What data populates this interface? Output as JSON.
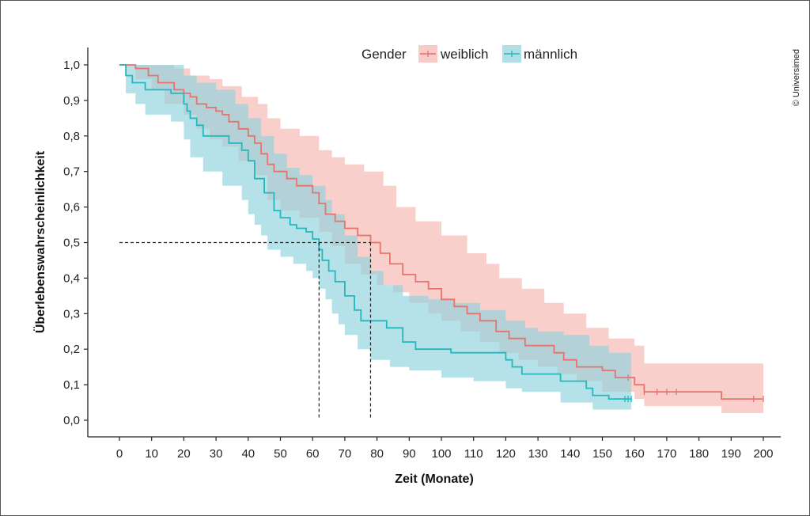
{
  "copyright": "© Universimed",
  "chart_data": {
    "type": "line",
    "subtype": "kaplan-meier survival curve with confidence bands",
    "xlabel": "Zeit (Monate)",
    "ylabel": "Überlebenswahrscheinlichkeit",
    "xlim": [
      -8,
      205
    ],
    "ylim": [
      0,
      1.0
    ],
    "x_ticks": [
      0,
      10,
      20,
      30,
      40,
      50,
      60,
      70,
      80,
      90,
      100,
      110,
      120,
      130,
      140,
      150,
      160,
      170,
      180,
      190,
      200
    ],
    "x_tick_labels": [
      "0",
      "10",
      "20",
      "30",
      "40",
      "50",
      "60",
      "70",
      "80",
      "90",
      "100",
      "110",
      "120",
      "130",
      "140",
      "150",
      "160",
      "170",
      "180",
      "190",
      "200"
    ],
    "y_ticks": [
      0,
      0.1,
      0.2,
      0.3,
      0.4,
      0.5,
      0.6,
      0.7,
      0.8,
      0.9,
      1.0
    ],
    "y_tick_labels": [
      "0,0",
      "0,1",
      "0,2",
      "0,3",
      "0,4",
      "0,5",
      "0,6",
      "0,7",
      "0,8",
      "0,9",
      "1,0"
    ],
    "legend": {
      "title": "Gender",
      "placement": "top-center"
    },
    "median_line": {
      "y": 0.5,
      "x_values": [
        62,
        78
      ]
    },
    "series": [
      {
        "name": "weiblich",
        "color": "#e8736c",
        "band_color": "#f4a7a3",
        "steps": [
          [
            0,
            1.0
          ],
          [
            5,
            0.99
          ],
          [
            9,
            0.97
          ],
          [
            12,
            0.95
          ],
          [
            17,
            0.93
          ],
          [
            20,
            0.92
          ],
          [
            22,
            0.91
          ],
          [
            24,
            0.89
          ],
          [
            27,
            0.88
          ],
          [
            30,
            0.87
          ],
          [
            32,
            0.86
          ],
          [
            34,
            0.84
          ],
          [
            37,
            0.82
          ],
          [
            40,
            0.8
          ],
          [
            42,
            0.78
          ],
          [
            44,
            0.75
          ],
          [
            46,
            0.72
          ],
          [
            48,
            0.7
          ],
          [
            52,
            0.68
          ],
          [
            55,
            0.66
          ],
          [
            60,
            0.64
          ],
          [
            62,
            0.61
          ],
          [
            64,
            0.58
          ],
          [
            67,
            0.56
          ],
          [
            70,
            0.54
          ],
          [
            74,
            0.52
          ],
          [
            78,
            0.5
          ],
          [
            81,
            0.47
          ],
          [
            84,
            0.44
          ],
          [
            88,
            0.41
          ],
          [
            92,
            0.39
          ],
          [
            96,
            0.37
          ],
          [
            100,
            0.34
          ],
          [
            104,
            0.32
          ],
          [
            108,
            0.3
          ],
          [
            112,
            0.28
          ],
          [
            117,
            0.25
          ],
          [
            121,
            0.23
          ],
          [
            126,
            0.21
          ],
          [
            135,
            0.19
          ],
          [
            138,
            0.17
          ],
          [
            142,
            0.15
          ],
          [
            150,
            0.14
          ],
          [
            154,
            0.12
          ],
          [
            160,
            0.1
          ],
          [
            163,
            0.08
          ],
          [
            187,
            0.06
          ],
          [
            200,
            0.06
          ]
        ],
        "ci_upper": [
          [
            0,
            1.0
          ],
          [
            5,
            1.0
          ],
          [
            10,
            1.0
          ],
          [
            17,
            0.99
          ],
          [
            22,
            0.97
          ],
          [
            28,
            0.96
          ],
          [
            32,
            0.94
          ],
          [
            38,
            0.91
          ],
          [
            43,
            0.89
          ],
          [
            46,
            0.85
          ],
          [
            50,
            0.82
          ],
          [
            56,
            0.8
          ],
          [
            62,
            0.76
          ],
          [
            66,
            0.74
          ],
          [
            70,
            0.72
          ],
          [
            76,
            0.7
          ],
          [
            82,
            0.66
          ],
          [
            86,
            0.6
          ],
          [
            92,
            0.56
          ],
          [
            100,
            0.52
          ],
          [
            108,
            0.47
          ],
          [
            114,
            0.44
          ],
          [
            118,
            0.4
          ],
          [
            125,
            0.37
          ],
          [
            132,
            0.33
          ],
          [
            138,
            0.3
          ],
          [
            145,
            0.26
          ],
          [
            152,
            0.23
          ],
          [
            160,
            0.21
          ],
          [
            163,
            0.16
          ],
          [
            187,
            0.16
          ],
          [
            200,
            0.16
          ]
        ],
        "ci_lower": [
          [
            0,
            1.0
          ],
          [
            5,
            0.96
          ],
          [
            10,
            0.93
          ],
          [
            14,
            0.89
          ],
          [
            20,
            0.86
          ],
          [
            24,
            0.82
          ],
          [
            28,
            0.79
          ],
          [
            32,
            0.77
          ],
          [
            37,
            0.73
          ],
          [
            42,
            0.69
          ],
          [
            46,
            0.62
          ],
          [
            50,
            0.59
          ],
          [
            56,
            0.57
          ],
          [
            62,
            0.53
          ],
          [
            66,
            0.49
          ],
          [
            70,
            0.44
          ],
          [
            75,
            0.41
          ],
          [
            80,
            0.38
          ],
          [
            85,
            0.36
          ],
          [
            90,
            0.33
          ],
          [
            96,
            0.3
          ],
          [
            100,
            0.28
          ],
          [
            106,
            0.25
          ],
          [
            112,
            0.22
          ],
          [
            118,
            0.19
          ],
          [
            124,
            0.17
          ],
          [
            130,
            0.15
          ],
          [
            136,
            0.13
          ],
          [
            142,
            0.11
          ],
          [
            150,
            0.08
          ],
          [
            160,
            0.06
          ],
          [
            163,
            0.04
          ],
          [
            187,
            0.02
          ],
          [
            200,
            0.02
          ]
        ],
        "censor_x": [
          158,
          163,
          167,
          170,
          173,
          197,
          200
        ]
      },
      {
        "name": "männlich",
        "color": "#22b8bd",
        "band_color": "#8ed2dc",
        "steps": [
          [
            0,
            1.0
          ],
          [
            2,
            0.97
          ],
          [
            4,
            0.95
          ],
          [
            8,
            0.93
          ],
          [
            16,
            0.92
          ],
          [
            20,
            0.89
          ],
          [
            21,
            0.87
          ],
          [
            22,
            0.85
          ],
          [
            24,
            0.83
          ],
          [
            26,
            0.8
          ],
          [
            34,
            0.78
          ],
          [
            38,
            0.76
          ],
          [
            40,
            0.73
          ],
          [
            42,
            0.68
          ],
          [
            45,
            0.64
          ],
          [
            48,
            0.59
          ],
          [
            50,
            0.57
          ],
          [
            53,
            0.55
          ],
          [
            55,
            0.54
          ],
          [
            58,
            0.53
          ],
          [
            60,
            0.51
          ],
          [
            62,
            0.48
          ],
          [
            63,
            0.45
          ],
          [
            65,
            0.42
          ],
          [
            67,
            0.39
          ],
          [
            70,
            0.35
          ],
          [
            73,
            0.31
          ],
          [
            75,
            0.28
          ],
          [
            83,
            0.26
          ],
          [
            88,
            0.22
          ],
          [
            92,
            0.2
          ],
          [
            103,
            0.19
          ],
          [
            120,
            0.17
          ],
          [
            122,
            0.15
          ],
          [
            125,
            0.13
          ],
          [
            137,
            0.11
          ],
          [
            145,
            0.09
          ],
          [
            147,
            0.07
          ],
          [
            152,
            0.06
          ],
          [
            159,
            0.06
          ]
        ],
        "ci_upper": [
          [
            0,
            1.0
          ],
          [
            2,
            1.0
          ],
          [
            10,
            1.0
          ],
          [
            17,
            1.0
          ],
          [
            20,
            0.97
          ],
          [
            24,
            0.95
          ],
          [
            30,
            0.93
          ],
          [
            36,
            0.89
          ],
          [
            40,
            0.85
          ],
          [
            44,
            0.8
          ],
          [
            48,
            0.75
          ],
          [
            52,
            0.71
          ],
          [
            56,
            0.69
          ],
          [
            60,
            0.66
          ],
          [
            64,
            0.62
          ],
          [
            66,
            0.58
          ],
          [
            70,
            0.52
          ],
          [
            74,
            0.46
          ],
          [
            78,
            0.42
          ],
          [
            82,
            0.38
          ],
          [
            88,
            0.35
          ],
          [
            96,
            0.34
          ],
          [
            104,
            0.33
          ],
          [
            112,
            0.31
          ],
          [
            120,
            0.28
          ],
          [
            126,
            0.26
          ],
          [
            130,
            0.25
          ],
          [
            138,
            0.24
          ],
          [
            146,
            0.21
          ],
          [
            152,
            0.19
          ],
          [
            159,
            0.17
          ]
        ],
        "ci_lower": [
          [
            0,
            1.0
          ],
          [
            2,
            0.92
          ],
          [
            5,
            0.89
          ],
          [
            8,
            0.86
          ],
          [
            16,
            0.84
          ],
          [
            20,
            0.79
          ],
          [
            22,
            0.74
          ],
          [
            26,
            0.7
          ],
          [
            32,
            0.66
          ],
          [
            38,
            0.62
          ],
          [
            40,
            0.58
          ],
          [
            42,
            0.55
          ],
          [
            44,
            0.52
          ],
          [
            46,
            0.48
          ],
          [
            50,
            0.46
          ],
          [
            54,
            0.44
          ],
          [
            58,
            0.42
          ],
          [
            60,
            0.4
          ],
          [
            62,
            0.37
          ],
          [
            64,
            0.34
          ],
          [
            66,
            0.3
          ],
          [
            68,
            0.27
          ],
          [
            70,
            0.24
          ],
          [
            74,
            0.2
          ],
          [
            78,
            0.17
          ],
          [
            84,
            0.15
          ],
          [
            90,
            0.14
          ],
          [
            100,
            0.12
          ],
          [
            110,
            0.11
          ],
          [
            120,
            0.09
          ],
          [
            125,
            0.08
          ],
          [
            137,
            0.05
          ],
          [
            147,
            0.03
          ],
          [
            159,
            0.03
          ]
        ],
        "censor_x": [
          157,
          158,
          159
        ]
      }
    ]
  }
}
